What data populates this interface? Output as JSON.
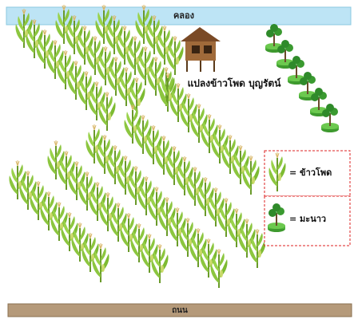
{
  "canal": "คลอง",
  "plot_label": "แปลงข้าวโพด บุญรัตน์",
  "legend": [
    {
      "label": "= ข้าวโพด"
    },
    {
      "label": "= มะนาว"
    }
  ],
  "road": "ถนน"
}
